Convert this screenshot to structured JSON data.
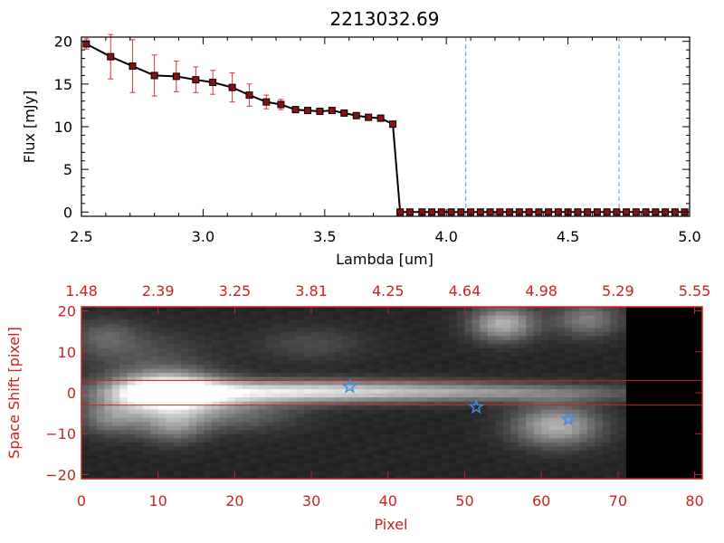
{
  "colors": {
    "background": "#ffffff",
    "axis": "#000000",
    "accent_red": "#cc2222",
    "line": "#000000",
    "marker": "#8b1010",
    "errorbar": "#dd3333",
    "dashed": "#4aa8d8",
    "star": "#3a8ee8"
  },
  "chart_data": [
    {
      "type": "line",
      "title": "2213032.69",
      "xlabel": "Lambda [um]",
      "ylabel": "Flux [mJy]",
      "xlim": [
        2.5,
        5.0
      ],
      "ylim": [
        -0.5,
        20.5
      ],
      "x_ticks": [
        "2.5",
        "3.0",
        "3.5",
        "4.0",
        "4.5",
        "5.0"
      ],
      "x_tick_values": [
        2.5,
        3.0,
        3.5,
        4.0,
        4.5,
        5.0
      ],
      "y_ticks": [
        "0",
        "5",
        "10",
        "15",
        "20"
      ],
      "y_tick_values": [
        0,
        5,
        10,
        15,
        20
      ],
      "grid": false,
      "vertical_dashed_lines": [
        4.08,
        4.71
      ],
      "series": [
        {
          "x": [
            2.52,
            2.62,
            2.71,
            2.8,
            2.89,
            2.97,
            3.04,
            3.12,
            3.19,
            3.26,
            3.32,
            3.38,
            3.43,
            3.48,
            3.53,
            3.58,
            3.63,
            3.68,
            3.73,
            3.78,
            3.81,
            3.85,
            3.9,
            3.94,
            3.98,
            4.02,
            4.06,
            4.1,
            4.14,
            4.18,
            4.22,
            4.26,
            4.3,
            4.34,
            4.38,
            4.42,
            4.46,
            4.5,
            4.54,
            4.58,
            4.62,
            4.66,
            4.7,
            4.74,
            4.78,
            4.82,
            4.86,
            4.9,
            4.94,
            4.98
          ],
          "y": [
            19.7,
            18.2,
            17.1,
            16.0,
            15.9,
            15.5,
            15.2,
            14.6,
            13.7,
            12.9,
            12.6,
            12.0,
            11.9,
            11.8,
            11.9,
            11.6,
            11.3,
            11.1,
            11.0,
            10.3,
            0.0,
            0.0,
            0.0,
            0.0,
            0.0,
            0.0,
            0.0,
            0.0,
            0.0,
            0.0,
            0.0,
            0.0,
            0.0,
            0.0,
            0.0,
            0.0,
            0.0,
            0.0,
            0.0,
            0.0,
            0.0,
            0.0,
            0.0,
            0.0,
            0.0,
            0.0,
            0.0,
            0.0,
            0.0,
            0.0
          ],
          "yerr": [
            0.6,
            2.6,
            3.1,
            2.4,
            1.8,
            1.5,
            1.4,
            1.7,
            1.3,
            0.8,
            0.6,
            0.3,
            0.2,
            0.2,
            0.3,
            0.2,
            0.2,
            0.2,
            0.2,
            0.3,
            0.0,
            0.0,
            0.0,
            0.0,
            0.0,
            0.0,
            0.0,
            0.0,
            0.0,
            0.0,
            0.0,
            0.0,
            0.0,
            0.0,
            0.0,
            0.0,
            0.0,
            0.0,
            0.0,
            0.0,
            0.0,
            0.0,
            0.0,
            0.0,
            0.0,
            0.0,
            0.0,
            0.0,
            0.0,
            0.0
          ]
        }
      ]
    },
    {
      "type": "heatmap",
      "xlabel": "Pixel",
      "ylabel": "Space Shift [pixel]",
      "xlim": [
        0,
        81
      ],
      "ylim": [
        -21,
        21
      ],
      "x_ticks": [
        "0",
        "10",
        "20",
        "30",
        "40",
        "50",
        "60",
        "70",
        "80"
      ],
      "x_tick_values": [
        0,
        10,
        20,
        30,
        40,
        50,
        60,
        70,
        80
      ],
      "top_ticks": [
        "1.48",
        "2.39",
        "3.25",
        "3.81",
        "4.25",
        "4.64",
        "4.98",
        "5.29",
        "5.55"
      ],
      "top_tick_values": [
        0,
        10,
        20,
        30,
        40,
        50,
        60,
        70,
        80
      ],
      "y_ticks": [
        "−20",
        "−10",
        "0",
        "10",
        "20"
      ],
      "y_tick_values": [
        -20,
        -10,
        0,
        10,
        20
      ],
      "horizontal_lines": [
        3,
        -3
      ],
      "markers": [
        {
          "x": 35,
          "y": 1.5
        },
        {
          "x": 51.5,
          "y": -3.5
        },
        {
          "x": 63.5,
          "y": -6.5
        }
      ],
      "blobs": [
        {
          "x": 11,
          "y": 0,
          "sx": 5,
          "sy": 3.5,
          "a": 1.0
        },
        {
          "x": 22,
          "y": 0.3,
          "sx": 12,
          "sy": 2,
          "a": 0.55
        },
        {
          "x": 40,
          "y": 0.5,
          "sx": 13,
          "sy": 1.8,
          "a": 0.4
        },
        {
          "x": 60,
          "y": 0,
          "sx": 12,
          "sy": 1.5,
          "a": 0.25
        },
        {
          "x": 4,
          "y": -6,
          "sx": 3,
          "sy": 3,
          "a": 0.35
        },
        {
          "x": 12,
          "y": -8,
          "sx": 3,
          "sy": 3,
          "a": 0.35
        },
        {
          "x": 20,
          "y": -5,
          "sx": 6,
          "sy": 3,
          "a": 0.25
        },
        {
          "x": 55,
          "y": 17,
          "sx": 3,
          "sy": 3,
          "a": 0.55
        },
        {
          "x": 62,
          "y": -8,
          "sx": 4,
          "sy": 3.5,
          "a": 0.55
        },
        {
          "x": 66,
          "y": 18,
          "sx": 3,
          "sy": 3,
          "a": 0.35
        },
        {
          "x": 3,
          "y": 14,
          "sx": 3,
          "sy": 3,
          "a": 0.2
        },
        {
          "x": 30,
          "y": 12,
          "sx": 5,
          "sy": 3,
          "a": 0.15
        },
        {
          "x": 8,
          "y": 10,
          "sx": 6,
          "sy": 4,
          "a": 0.15
        }
      ]
    }
  ]
}
